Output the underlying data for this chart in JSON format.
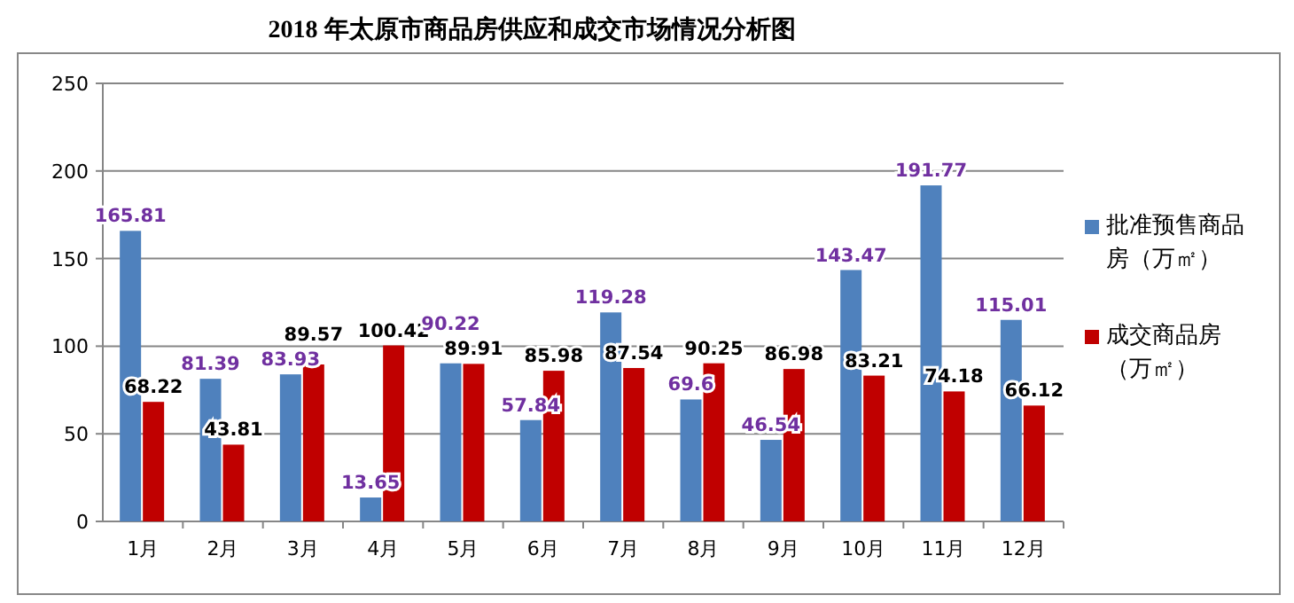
{
  "chart_data": {
    "type": "bar",
    "title": "2018 年太原市商品房供应和成交市场情况分析图",
    "categories": [
      "1月",
      "2月",
      "3月",
      "4月",
      "5月",
      "6月",
      "7月",
      "8月",
      "9月",
      "10月",
      "11月",
      "12月"
    ],
    "series": [
      {
        "name": "批准预售商品房（万㎡）",
        "color": "#4f81bd",
        "values": [
          165.81,
          81.39,
          83.93,
          13.65,
          90.22,
          57.84,
          119.28,
          69.6,
          46.54,
          143.47,
          191.77,
          115.01
        ]
      },
      {
        "name": "成交商品房（万㎡）",
        "color": "#c00000",
        "values": [
          68.22,
          43.81,
          89.57,
          100.42,
          89.91,
          85.98,
          87.54,
          90.25,
          86.98,
          83.21,
          74.18,
          66.12
        ]
      }
    ],
    "ylim": [
      0,
      250
    ],
    "yticks": [
      0,
      50,
      100,
      150,
      200,
      250
    ],
    "grid": "y",
    "legend": "right",
    "data_labels": true
  }
}
